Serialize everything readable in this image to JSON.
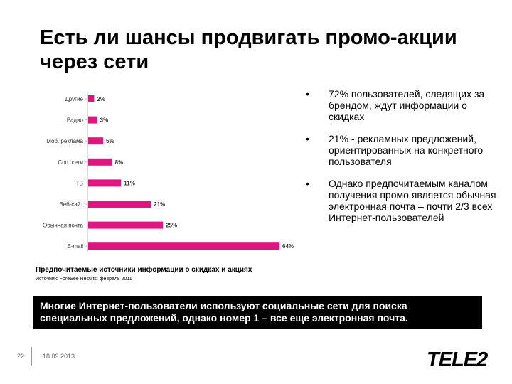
{
  "slide": {
    "title": "Есть ли шансы продвигать промо-акции через сети",
    "bullets": [
      "72% пользователей, следящих за брендом, ждут информации о скидках",
      "21% - рекламных предложений, ориентированных на конкретного пользователя",
      "Однако предпочитаемым каналом получения промо является обычная электронная почта – почти 2/3 всех Интернет-пользователей"
    ],
    "bullet_marker": "•",
    "chart_caption": "Предпочитаемые источники информации о скидках и акциях",
    "source": "Источник: ForeSee Results, февраль 2011",
    "banner": "Многие Интернет-пользователи используют социальные сети для поиска специальных предложений, однако номер 1 – все еще электронная почта.",
    "page_number": "22",
    "date": "18.09.2013",
    "logo": "TELE2"
  },
  "chart_data": {
    "type": "bar",
    "orientation": "horizontal",
    "categories": [
      "Другие",
      "Радио",
      "Моб. реклама",
      "Соц. сети",
      "ТВ",
      "Веб-сайт",
      "Обычная почта",
      "E-mail"
    ],
    "values": [
      2,
      3,
      5,
      8,
      11,
      21,
      25,
      64
    ],
    "data_labels": [
      "2%",
      "3%",
      "5%",
      "8%",
      "11%",
      "21%",
      "25%",
      "64%"
    ],
    "xlim": [
      0,
      64
    ],
    "bar_color": "#e0157f",
    "grid": false
  }
}
